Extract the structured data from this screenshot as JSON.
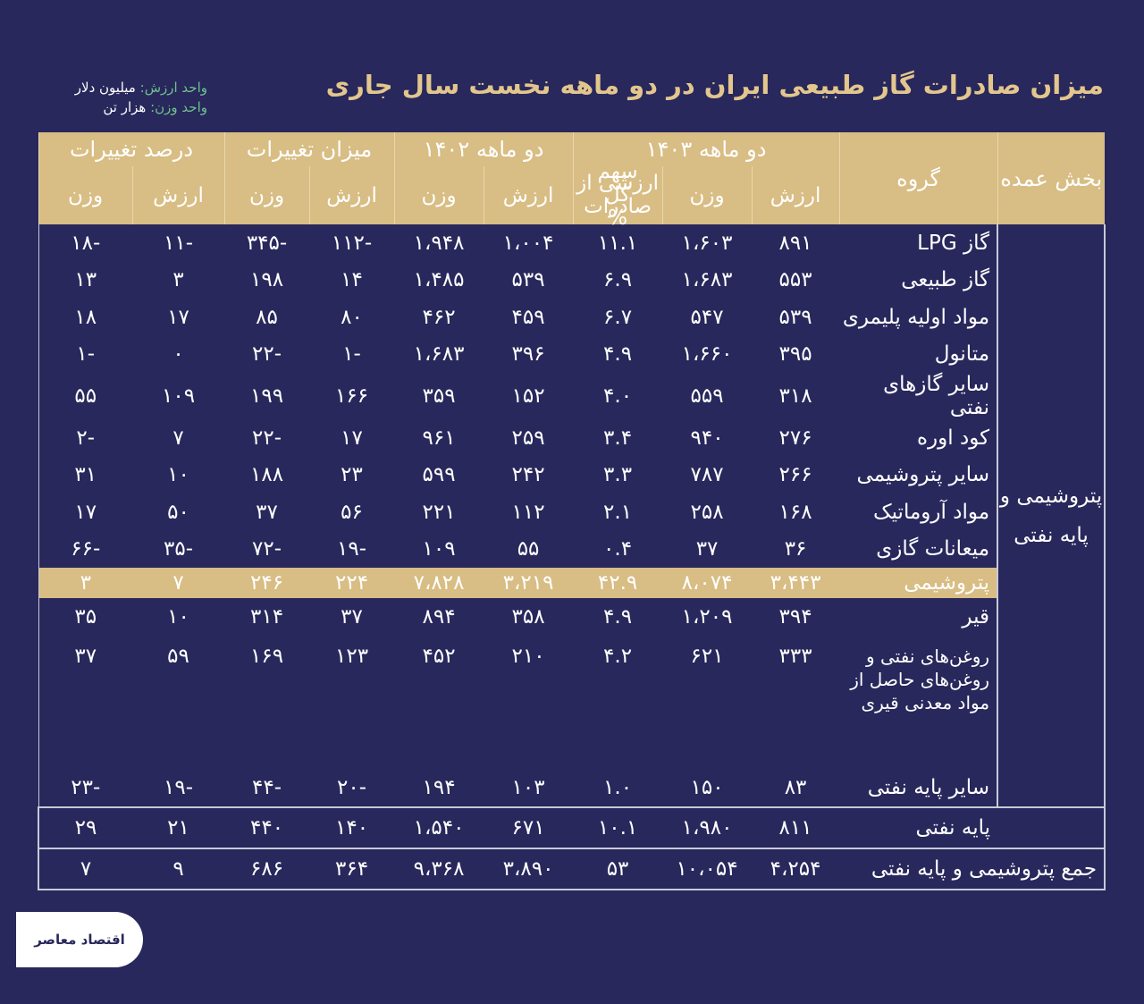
{
  "header": {
    "title": "میزان صادرات گاز طبیعی ایران در دو ماهه نخست سال جاری",
    "units": [
      {
        "label": "واحد ارزش:",
        "value": "میلیون دلار"
      },
      {
        "label": "واحد وزن:",
        "value": "هزار تن"
      }
    ]
  },
  "table": {
    "header": {
      "section": "بخش عمده",
      "group": "گروه",
      "periods": [
        "دو ماهه ۱۴۰۳",
        "دو ماهه ۱۴۰۲",
        "میزان تغییرات",
        "درصد تغییرات"
      ],
      "subcolumns": [
        "ارزش",
        "وزن",
        "سهم ارزشی از کل صادرات %",
        "ارزش",
        "وزن",
        "ارزش",
        "وزن",
        "ارزش",
        "وزن"
      ]
    },
    "section_label": "پتروشیمی و پایه نفتی",
    "rows": [
      {
        "group": "گاز LPG",
        "values": [
          "۸۹۱",
          "۱،۶۰۳",
          "۱۱.۱",
          "۱،۰۰۴",
          "۱،۹۴۸",
          "-۱۱۲",
          "-۳۴۵",
          "-۱۱",
          "-۱۸"
        ]
      },
      {
        "group": "گاز طبیعی",
        "values": [
          "۵۵۳",
          "۱،۶۸۳",
          "۶.۹",
          "۵۳۹",
          "۱،۴۸۵",
          "۱۴",
          "۱۹۸",
          "۳",
          "۱۳"
        ]
      },
      {
        "group": "مواد اولیه پلیمری",
        "values": [
          "۵۳۹",
          "۵۴۷",
          "۶.۷",
          "۴۵۹",
          "۴۶۲",
          "۸۰",
          "۸۵",
          "۱۷",
          "۱۸"
        ]
      },
      {
        "group": "متانول",
        "values": [
          "۳۹۵",
          "۱،۶۶۰",
          "۴.۹",
          "۳۹۶",
          "۱،۶۸۳",
          "-۱",
          "-۲۲",
          "۰",
          "-۱"
        ]
      },
      {
        "group": "سایر گازهای نفتی",
        "values": [
          "۳۱۸",
          "۵۵۹",
          "۴.۰",
          "۱۵۲",
          "۳۵۹",
          "۱۶۶",
          "۱۹۹",
          "۱۰۹",
          "۵۵"
        ]
      },
      {
        "group": "کود اوره",
        "values": [
          "۲۷۶",
          "۹۴۰",
          "۳.۴",
          "۲۵۹",
          "۹۶۱",
          "۱۷",
          "-۲۲",
          "۷",
          "-۲"
        ]
      },
      {
        "group": "سایر پتروشیمی",
        "values": [
          "۲۶۶",
          "۷۸۷",
          "۳.۳",
          "۲۴۲",
          "۵۹۹",
          "۲۳",
          "۱۸۸",
          "۱۰",
          "۳۱"
        ]
      },
      {
        "group": "مواد آروماتیک",
        "values": [
          "۱۶۸",
          "۲۵۸",
          "۲.۱",
          "۱۱۲",
          "۲۲۱",
          "۵۶",
          "۳۷",
          "۵۰",
          "۱۷"
        ]
      },
      {
        "group": "میعانات گازی",
        "values": [
          "۳۶",
          "۳۷",
          "۰.۴",
          "۵۵",
          "۱۰۹",
          "-۱۹",
          "-۷۲",
          "-۳۵",
          "-۶۶"
        ]
      },
      {
        "group": "پتروشیمی",
        "values": [
          "۳،۴۴۳",
          "۸،۰۷۴",
          "۴۲.۹",
          "۳،۲۱۹",
          "۷،۸۲۸",
          "۲۲۴",
          "۲۴۶",
          "۷",
          "۳"
        ]
      },
      {
        "group": "قیر",
        "values": [
          "۳۹۴",
          "۱،۲۰۹",
          "۴.۹",
          "۳۵۸",
          "۸۹۴",
          "۳۷",
          "۳۱۴",
          "۱۰",
          "۳۵"
        ]
      },
      {
        "group": "روغن‌های نفتی و روغن‌های حاصل از مواد معدنی قیری",
        "values": [
          "۳۳۳",
          "۶۲۱",
          "۴.۲",
          "۲۱۰",
          "۴۵۲",
          "۱۲۳",
          "۱۶۹",
          "۵۹",
          "۳۷"
        ]
      },
      {
        "group": "سایر پایه نفتی",
        "values": [
          "۸۳",
          "۱۵۰",
          "۱.۰",
          "۱۰۳",
          "۱۹۴",
          "-۲۰",
          "-۴۴",
          "-۱۹",
          "-۲۳"
        ]
      },
      {
        "group": "پایه نفتی",
        "values": [
          "۸۱۱",
          "۱،۹۸۰",
          "۱۰.۱",
          "۶۷۱",
          "۱،۵۴۰",
          "۱۴۰",
          "۴۴۰",
          "۲۱",
          "۲۹"
        ]
      },
      {
        "group": "جمع پتروشیمی و پایه نفتی",
        "values": [
          "۴،۲۵۴",
          "۱۰،۰۵۴",
          "۵۳",
          "۳،۸۹۰",
          "۹،۳۶۸",
          "۳۶۴",
          "۶۸۶",
          "۹",
          "۷"
        ]
      }
    ]
  },
  "logo": "اقتصاد معاصر"
}
